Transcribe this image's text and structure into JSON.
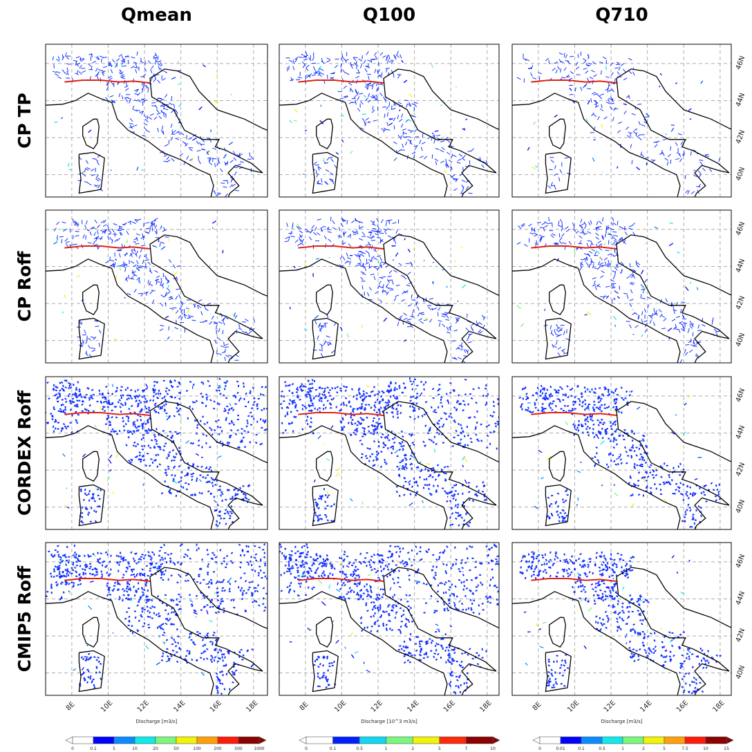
{
  "columns": [
    "Qmean",
    "Q100",
    "Q710"
  ],
  "rows": [
    "CP TP",
    "CP Roff",
    "CORDEX Roff",
    "CMIP5 Roff"
  ],
  "lon_ticks": [
    {
      "value": 8,
      "label": "8E"
    },
    {
      "value": 10,
      "label": "10E"
    },
    {
      "value": 12,
      "label": "12E"
    },
    {
      "value": 14,
      "label": "14E"
    },
    {
      "value": 16,
      "label": "16E"
    },
    {
      "value": 18,
      "label": "18E"
    }
  ],
  "lat_ticks": [
    {
      "value": 40,
      "label": "40N"
    },
    {
      "value": 42,
      "label": "42N"
    },
    {
      "value": 44,
      "label": "44N"
    },
    {
      "value": 46,
      "label": "46N"
    }
  ],
  "colorbars": [
    {
      "label": "Discharge [m3/s]",
      "ticks": [
        0,
        0.1,
        5,
        10,
        20,
        50,
        100,
        200,
        500,
        1000
      ],
      "colors": [
        "#ffffff",
        "#0000ff",
        "#0a8cff",
        "#11e8e8",
        "#7cf57c",
        "#f2f20a",
        "#ffa00a",
        "#ff1a0a",
        "#8b0000"
      ]
    },
    {
      "label": "Discharge [10^3 m3/s]",
      "ticks": [
        0,
        0.1,
        0.5,
        1,
        2,
        5,
        7,
        10
      ],
      "colors": [
        "#ffffff",
        "#0020ff",
        "#11d8f0",
        "#7cf57c",
        "#f2f20a",
        "#ff2a0a",
        "#8b0000"
      ]
    },
    {
      "label": "Discharge [m3/s]",
      "ticks": [
        0,
        0.01,
        0.1,
        0.5,
        1,
        2,
        5,
        7.5,
        10,
        15
      ],
      "colors": [
        "#ffffff",
        "#0000ff",
        "#0a8cff",
        "#11e8e8",
        "#7cf57c",
        "#f2f20a",
        "#ffa00a",
        "#ff1a0a",
        "#8b0000"
      ]
    }
  ]
}
